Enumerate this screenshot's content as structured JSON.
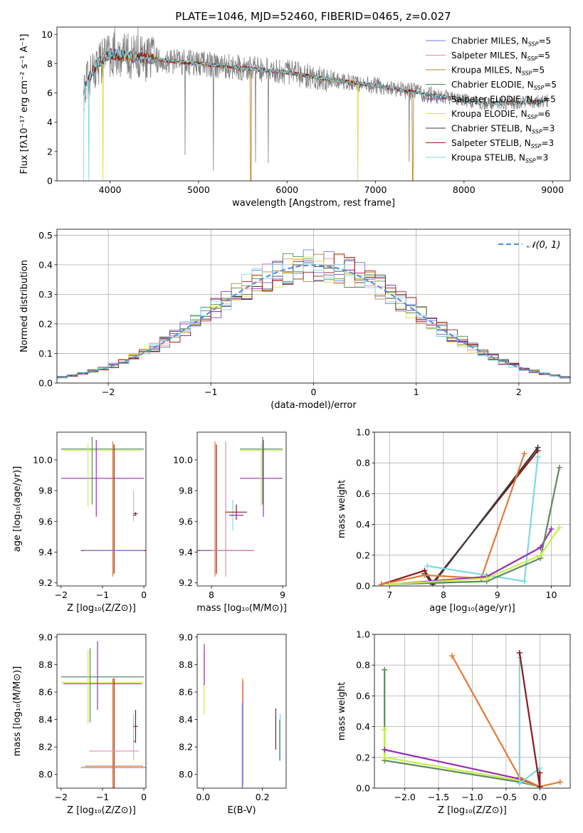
{
  "title": "PLATE=1046, MJD=52460, FIBERID=0465, z=0.027",
  "colors": {
    "Chabrier MILES": "#6e7fd6",
    "Salpeter MILES": "#e58ab8",
    "Kroupa MILES": "#b8862b",
    "Chabrier ELODIE": "#4f8a4f",
    "Salpeter ELODIE": "#8e3bb0",
    "Kroupa ELODIE": "#e6d84a",
    "Chabrier STELIB": "#3a3a3a",
    "Salpeter STELIB": "#a01818",
    "Kroupa STELIB": "#7fd8e2",
    "data": "#808080",
    "normal": "#5b8fd6",
    "lime": "#c6f04a",
    "orange": "#e07b39",
    "green": "#5d8a5d",
    "purple": "#9a2fb0",
    "darkred": "#8b1a1a",
    "cyan": "#7fd8e2"
  },
  "chart_data": [
    {
      "type": "line",
      "title": "PLATE=1046, MJD=52460, FIBERID=0465, z=0.027",
      "xlabel": "wavelength [Angstrom, rest frame]",
      "ylabel": "Flux [fλ10⁻¹⁷ erg cm⁻² s⁻¹ A⁻¹]",
      "xlim": [
        3400,
        9200
      ],
      "ylim": [
        0,
        10.5
      ],
      "xticks": [
        4000,
        5000,
        6000,
        7000,
        8000,
        9000
      ],
      "yticks": [
        0,
        2,
        4,
        6,
        8,
        10
      ],
      "legend_position": "top-right",
      "legend": [
        {
          "name": "Chabrier MILES",
          "nssp": "5"
        },
        {
          "name": "Salpeter MILES",
          "nssp": "5"
        },
        {
          "name": "Kroupa MILES",
          "nssp": "5"
        },
        {
          "name": "Chabrier ELODIE",
          "nssp": "5"
        },
        {
          "name": "Salpeter ELODIE",
          "nssp": "5"
        },
        {
          "name": "Kroupa ELODIE",
          "nssp": "6"
        },
        {
          "name": "Chabrier STELIB",
          "nssp": "3"
        },
        {
          "name": "Salpeter STELIB",
          "nssp": "3"
        },
        {
          "name": "Kroupa STELIB",
          "nssp": "3"
        }
      ],
      "legend_nssp_label": "N",
      "legend_nssp_sub": "SSP",
      "continuum": [
        [
          3700,
          6.2
        ],
        [
          3850,
          8.0
        ],
        [
          4000,
          8.7
        ],
        [
          4200,
          8.5
        ],
        [
          4500,
          8.3
        ],
        [
          5000,
          8.0
        ],
        [
          5500,
          7.7
        ],
        [
          6000,
          7.4
        ],
        [
          6500,
          6.9
        ],
        [
          7000,
          6.5
        ],
        [
          7500,
          6.0
        ],
        [
          7900,
          5.6
        ],
        [
          8200,
          5.3
        ],
        [
          8600,
          5.3
        ],
        [
          8950,
          5.5
        ]
      ]
    },
    {
      "type": "line",
      "xlabel": "(data-model)/error",
      "ylabel": "Normed distribution",
      "xlim": [
        -2.5,
        2.5
      ],
      "ylim": [
        0,
        0.52
      ],
      "xticks": [
        -2,
        -1,
        0,
        1,
        2
      ],
      "yticks": [
        0.0,
        0.1,
        0.2,
        0.3,
        0.4,
        0.5
      ],
      "ytick_labels": [
        "0.0",
        "0.1",
        "0.2",
        "0.3",
        "0.4",
        "0.5"
      ],
      "legend_position": "top-right",
      "legend": [
        "𝒩(0, 1)"
      ]
    },
    {
      "type": "scatter",
      "xlabel": "Z [log₁₀(Z/Z⊙)]",
      "ylabel": "age  [log₁₀(age/yr)]",
      "xlim": [
        -2.1,
        0.05
      ],
      "ylim": [
        9.18,
        10.18
      ],
      "xticks": [
        -2,
        -1,
        0
      ],
      "yticks": [
        9.2,
        9.4,
        9.6,
        9.8,
        10.0
      ],
      "ytick_labels": [
        "9.2",
        "9.4",
        "9.6",
        "9.8",
        "10.0"
      ]
    },
    {
      "type": "scatter",
      "xlabel": "mass [log₁₀(M/M⊙)]",
      "xlim": [
        7.8,
        9.05
      ],
      "ylim": [
        9.18,
        10.18
      ],
      "xticks": [
        8,
        9
      ],
      "yticks": [
        9.2,
        9.4,
        9.6,
        9.8,
        10.0
      ],
      "ytick_labels": [
        "9.2",
        "9.4",
        "9.6",
        "9.8",
        "10.0"
      ]
    },
    {
      "type": "line",
      "xlabel": "age  [log₁₀(age/yr)]",
      "ylabel": "mass weight",
      "xlim": [
        6.72,
        10.35
      ],
      "ylim": [
        0,
        1.0
      ],
      "xticks": [
        7,
        8,
        9,
        10
      ],
      "yticks": [
        0.0,
        0.2,
        0.4,
        0.6,
        0.8,
        1.0
      ],
      "ytick_labels": [
        "0.0",
        "0.2",
        "0.4",
        "0.6",
        "0.8",
        "1.0"
      ],
      "series": [
        {
          "color": "#8b1a1a",
          "points": [
            [
              6.85,
              0.01
            ],
            [
              7.65,
              0.1
            ],
            [
              7.8,
              0.02
            ],
            [
              9.75,
              0.88
            ]
          ]
        },
        {
          "color": "#3a3a3a",
          "points": [
            [
              7.65,
              0.08
            ],
            [
              7.8,
              0.01
            ],
            [
              9.75,
              0.9
            ]
          ]
        },
        {
          "color": "#e07b39",
          "points": [
            [
              6.85,
              0.01
            ],
            [
              7.65,
              0.07
            ],
            [
              8.7,
              0.05
            ],
            [
              9.5,
              0.86
            ]
          ]
        },
        {
          "color": "#7fd8e2",
          "points": [
            [
              7.7,
              0.13
            ],
            [
              8.8,
              0.07
            ],
            [
              9.5,
              0.03
            ],
            [
              9.75,
              0.84
            ]
          ]
        },
        {
          "color": "#9a2fb0",
          "points": [
            [
              7.0,
              0.01
            ],
            [
              8.8,
              0.06
            ],
            [
              9.8,
              0.25
            ],
            [
              10.0,
              0.37
            ]
          ]
        },
        {
          "color": "#5d8a5d",
          "points": [
            [
              7.0,
              0.01
            ],
            [
              8.8,
              0.03
            ],
            [
              9.8,
              0.18
            ],
            [
              10.15,
              0.77
            ]
          ]
        },
        {
          "color": "#c6f04a",
          "points": [
            [
              7.0,
              0.01
            ],
            [
              8.8,
              0.05
            ],
            [
              9.8,
              0.2
            ],
            [
              10.15,
              0.38
            ]
          ]
        }
      ]
    },
    {
      "type": "scatter",
      "xlabel": "Z [log₁₀(Z/Z⊙)]",
      "ylabel": "mass [log₁₀(M/M⊙)]",
      "xlim": [
        -2.1,
        0.05
      ],
      "ylim": [
        7.9,
        9.02
      ],
      "xticks": [
        -2,
        -1,
        0
      ],
      "yticks": [
        8.0,
        8.2,
        8.4,
        8.6,
        8.8,
        9.0
      ],
      "ytick_labels": [
        "8.0",
        "8.2",
        "8.4",
        "8.6",
        "8.8",
        "9.0"
      ]
    },
    {
      "type": "scatter",
      "xlabel": "E(B-V)",
      "xlim": [
        -0.02,
        0.28
      ],
      "ylim": [
        7.9,
        9.02
      ],
      "xticks": [
        0.0,
        0.2
      ],
      "xtick_labels": [
        "0.0",
        "0.2"
      ],
      "yticks": [
        8.0,
        8.2,
        8.4,
        8.6,
        8.8,
        9.0
      ],
      "ytick_labels": [
        "8.0",
        "8.2",
        "8.4",
        "8.6",
        "8.8",
        "9.0"
      ]
    },
    {
      "type": "line",
      "xlabel": "Z [log₁₀(Z/Z⊙)]",
      "ylabel": "mass weight",
      "xlim": [
        -2.45,
        0.45
      ],
      "ylim": [
        0,
        1.0
      ],
      "xticks": [
        -2.0,
        -1.5,
        -1.0,
        -0.5,
        0.0
      ],
      "xtick_labels": [
        "−2.0",
        "−1.5",
        "−1.0",
        "−0.5",
        "0.0"
      ],
      "yticks": [
        0.0,
        0.2,
        0.4,
        0.6,
        0.8,
        1.0
      ],
      "ytick_labels": [
        "0.0",
        "0.2",
        "0.4",
        "0.6",
        "0.8",
        "1.0"
      ],
      "series": [
        {
          "color": "#5d8a5d",
          "points": [
            [
              -2.3,
              0.77
            ],
            [
              -2.3,
              0.18
            ],
            [
              -0.3,
              0.04
            ],
            [
              0.0,
              0.01
            ]
          ]
        },
        {
          "color": "#c6f04a",
          "points": [
            [
              -2.3,
              0.38
            ],
            [
              -2.3,
              0.2
            ],
            [
              -0.3,
              0.05
            ],
            [
              0.0,
              0.01
            ]
          ]
        },
        {
          "color": "#9a2fb0",
          "points": [
            [
              -2.3,
              0.25
            ],
            [
              -0.3,
              0.06
            ],
            [
              0.0,
              0.01
            ]
          ]
        },
        {
          "color": "#e07b39",
          "points": [
            [
              -1.3,
              0.86
            ],
            [
              -0.3,
              0.07
            ],
            [
              0.0,
              0.01
            ],
            [
              0.3,
              0.04
            ]
          ]
        },
        {
          "color": "#7fd8e2",
          "points": [
            [
              -0.3,
              0.85
            ],
            [
              -0.3,
              0.03
            ],
            [
              0.0,
              0.13
            ]
          ]
        },
        {
          "color": "#8b1a1a",
          "points": [
            [
              -0.3,
              0.88
            ],
            [
              0.0,
              0.01
            ],
            [
              0.0,
              0.1
            ]
          ]
        }
      ]
    }
  ]
}
